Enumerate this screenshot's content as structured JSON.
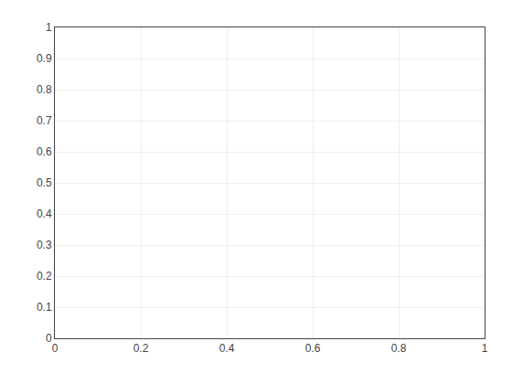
{
  "chart_data": {
    "type": "line",
    "series": [
      {
        "color": "#0000ff",
        "x": [],
        "values": []
      },
      {
        "color": "#ff0000",
        "x": [],
        "values": []
      }
    ],
    "xlim": [
      0,
      1
    ],
    "ylim": [
      0,
      1
    ],
    "xticks": [
      0,
      0.2,
      0.4,
      0.6,
      0.8,
      1
    ],
    "yticks": [
      0,
      0.1,
      0.2,
      0.3,
      0.4,
      0.5,
      0.6,
      0.7,
      0.8,
      0.9,
      1
    ],
    "grid": true
  }
}
